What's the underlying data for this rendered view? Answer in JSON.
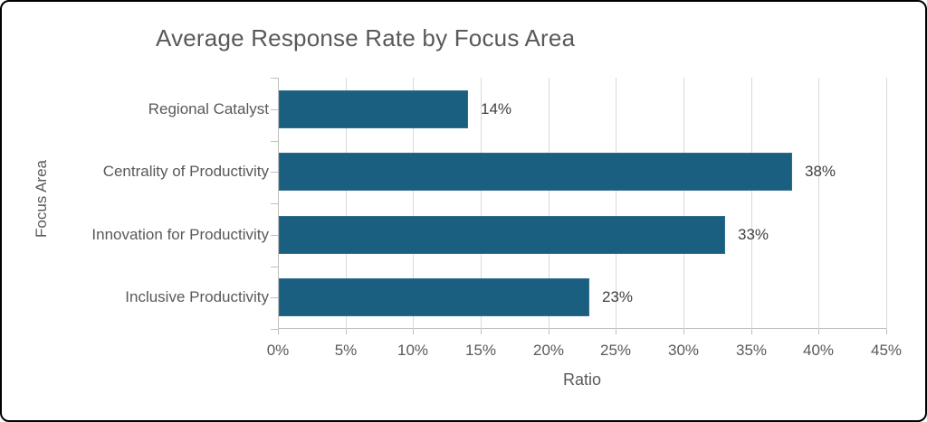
{
  "chart_data": {
    "type": "bar",
    "orientation": "horizontal",
    "title": "Average Response Rate by Focus Area",
    "categories": [
      "Regional Catalyst",
      "Centrality of Productivity",
      "Innovation for Productivity",
      "Inclusive Productivity"
    ],
    "values": [
      14,
      38,
      33,
      23
    ],
    "data_labels": [
      "14%",
      "38%",
      "33%",
      "23%"
    ],
    "xlabel": "Ratio",
    "ylabel": "Focus Area",
    "xlim": [
      0,
      45
    ],
    "x_tick_values": [
      0,
      5,
      10,
      15,
      20,
      25,
      30,
      35,
      40,
      45
    ],
    "x_ticks": [
      "0%",
      "5%",
      "10%",
      "15%",
      "20%",
      "25%",
      "30%",
      "35%",
      "40%",
      "45%"
    ],
    "grid": true,
    "legend": false,
    "colors": {
      "bar_fill": "#1A5E80",
      "bar_border": "#2E6D8E",
      "title_text": "#595959",
      "axis_text": "#595959",
      "data_label_text": "#404040",
      "gridline": "#D9D9D9",
      "axis_line": "#BFBFBF",
      "frame_border": "#000000",
      "background": "#FFFFFF"
    }
  }
}
